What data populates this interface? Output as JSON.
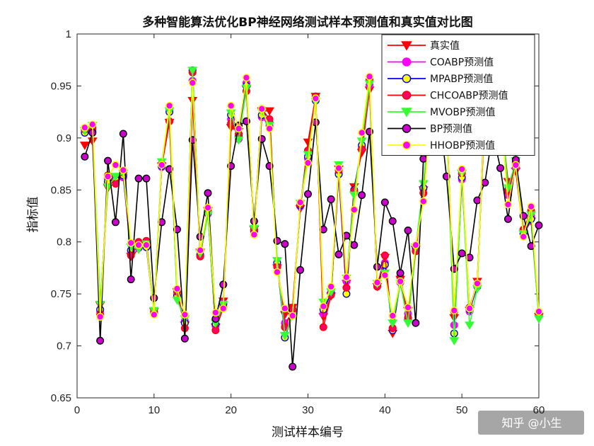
{
  "watermark": "知乎 @小生",
  "chart_data": {
    "type": "line",
    "title": "多种智能算法优化BP神经网络测试样本预测值和真实值对比图",
    "xlabel": "测试样本编号",
    "ylabel": "指标值",
    "xlim": [
      0,
      60
    ],
    "ylim": [
      0.65,
      1
    ],
    "xticks": [
      0,
      10,
      20,
      30,
      40,
      50,
      60
    ],
    "yticks": [
      0.65,
      0.7,
      0.75,
      0.8,
      0.85,
      0.9,
      0.95,
      1
    ],
    "ytick_labels": [
      "0.65",
      "0.7",
      "0.75",
      "0.8",
      "0.85",
      "0.9",
      "0.95",
      "1"
    ],
    "grid": false,
    "legend_position": "top-right",
    "x": [
      1,
      2,
      3,
      4,
      5,
      6,
      7,
      8,
      9,
      10,
      11,
      12,
      13,
      14,
      15,
      16,
      17,
      18,
      19,
      20,
      21,
      22,
      23,
      24,
      25,
      26,
      27,
      28,
      29,
      30,
      31,
      32,
      33,
      34,
      35,
      36,
      37,
      38,
      39,
      40,
      41,
      42,
      43,
      44,
      45,
      46,
      47,
      48,
      49,
      50,
      51,
      52,
      53,
      54,
      55,
      56,
      57,
      58,
      59,
      60
    ],
    "series": [
      {
        "name": "真实值",
        "color": "#ff0000",
        "marker": "triangle-down",
        "fill": "#ff0000",
        "values": [
          0.893,
          0.897,
          0.739,
          0.852,
          0.861,
          0.866,
          0.786,
          0.793,
          0.797,
          0.733,
          0.873,
          0.915,
          0.752,
          0.72,
          0.936,
          0.79,
          0.83,
          0.718,
          0.743,
          0.91,
          0.906,
          0.947,
          0.812,
          0.926,
          0.926,
          0.775,
          0.73,
          0.737,
          0.832,
          0.896,
          0.94,
          0.728,
          0.748,
          0.87,
          0.76,
          0.853,
          0.886,
          0.946,
          0.757,
          0.785,
          0.712,
          0.764,
          0.734,
          0.793,
          0.85,
          0.93,
          0.945,
          0.92,
          0.727,
          0.866,
          0.734,
          0.762,
          0.925,
          0.935,
          0.925,
          0.858,
          0.868,
          0.808,
          0.82,
          0.728
        ]
      },
      {
        "name": "COABP预测值",
        "color": "#ff00ff",
        "marker": "circle",
        "fill": "#ff00ff",
        "values": [
          0.906,
          0.908,
          0.733,
          0.861,
          0.858,
          0.862,
          0.791,
          0.794,
          0.796,
          0.732,
          0.872,
          0.928,
          0.749,
          0.724,
          0.955,
          0.788,
          0.827,
          0.719,
          0.741,
          0.918,
          0.899,
          0.953,
          0.81,
          0.92,
          0.912,
          0.777,
          0.722,
          0.732,
          0.834,
          0.88,
          0.938,
          0.731,
          0.752,
          0.866,
          0.762,
          0.848,
          0.891,
          0.951,
          0.76,
          0.78,
          0.717,
          0.761,
          0.731,
          0.793,
          0.851,
          0.935,
          0.955,
          0.92,
          0.72,
          0.86,
          0.733,
          0.758,
          0.935,
          0.94,
          0.935,
          0.845,
          0.872,
          0.81,
          0.825,
          0.73
        ]
      },
      {
        "name": "MPABP预测值",
        "color": "#0000ff",
        "marker": "circle",
        "fill": "#ffff00",
        "values": [
          0.905,
          0.906,
          0.735,
          0.858,
          0.86,
          0.864,
          0.792,
          0.795,
          0.795,
          0.731,
          0.873,
          0.925,
          0.748,
          0.722,
          0.965,
          0.787,
          0.828,
          0.721,
          0.74,
          0.922,
          0.902,
          0.95,
          0.811,
          0.922,
          0.915,
          0.78,
          0.708,
          0.73,
          0.835,
          0.882,
          0.936,
          0.735,
          0.75,
          0.865,
          0.75,
          0.85,
          0.893,
          0.955,
          0.758,
          0.778,
          0.715,
          0.762,
          0.725,
          0.795,
          0.852,
          0.93,
          0.95,
          0.925,
          0.712,
          0.862,
          0.735,
          0.757,
          0.94,
          0.945,
          0.93,
          0.85,
          0.875,
          0.808,
          0.822,
          0.732
        ]
      },
      {
        "name": "CHCOABP预测值",
        "color": "#ff0000",
        "marker": "circle",
        "fill": "#ff0066",
        "values": [
          0.908,
          0.91,
          0.73,
          0.864,
          0.856,
          0.867,
          0.787,
          0.8,
          0.801,
          0.733,
          0.875,
          0.916,
          0.752,
          0.717,
          0.963,
          0.786,
          0.83,
          0.715,
          0.737,
          0.914,
          0.904,
          0.945,
          0.812,
          0.928,
          0.918,
          0.776,
          0.718,
          0.735,
          0.836,
          0.888,
          0.94,
          0.718,
          0.749,
          0.869,
          0.756,
          0.849,
          0.889,
          0.956,
          0.757,
          0.787,
          0.717,
          0.766,
          0.727,
          0.791,
          0.847,
          0.931,
          0.952,
          0.922,
          0.733,
          0.866,
          0.737,
          0.76,
          0.93,
          0.938,
          0.928,
          0.849,
          0.877,
          0.812,
          0.83,
          0.729
        ]
      },
      {
        "name": "MVOBP预测值",
        "color": "#33ff33",
        "marker": "triangle-down",
        "fill": "#33ff33",
        "values": [
          0.907,
          0.912,
          0.74,
          0.853,
          0.863,
          0.866,
          0.795,
          0.793,
          0.798,
          0.734,
          0.877,
          0.926,
          0.744,
          0.726,
          0.965,
          0.789,
          0.826,
          0.722,
          0.74,
          0.924,
          0.898,
          0.948,
          0.813,
          0.925,
          0.912,
          0.782,
          0.71,
          0.729,
          0.837,
          0.884,
          0.935,
          0.742,
          0.752,
          0.874,
          0.765,
          0.845,
          0.897,
          0.952,
          0.76,
          0.77,
          0.722,
          0.76,
          0.722,
          0.795,
          0.856,
          0.935,
          0.958,
          0.918,
          0.705,
          0.866,
          0.72,
          0.755,
          0.938,
          0.942,
          0.932,
          0.852,
          0.878,
          0.808,
          0.826,
          0.726
        ]
      },
      {
        "name": "BP预测值",
        "color": "#000000",
        "marker": "circle",
        "fill": "#cc00cc",
        "values": [
          0.882,
          0.905,
          0.705,
          0.878,
          0.819,
          0.904,
          0.764,
          0.861,
          0.861,
          0.746,
          0.819,
          0.87,
          0.812,
          0.707,
          0.898,
          0.805,
          0.847,
          0.726,
          0.759,
          0.873,
          0.912,
          0.916,
          0.82,
          0.899,
          0.873,
          0.801,
          0.798,
          0.68,
          0.773,
          0.846,
          0.915,
          0.812,
          0.841,
          0.788,
          0.806,
          0.797,
          0.845,
          0.906,
          0.776,
          0.838,
          0.82,
          0.77,
          0.811,
          0.722,
          0.88,
          0.945,
          0.93,
          0.863,
          0.774,
          0.789,
          0.785,
          0.84,
          0.857,
          0.905,
          0.871,
          0.822,
          0.879,
          0.825,
          0.796,
          0.816
        ]
      },
      {
        "name": "HHOBP预测值",
        "color": "#ffff00",
        "marker": "circle",
        "fill": "#ff00ff",
        "values": [
          0.91,
          0.913,
          0.728,
          0.863,
          0.874,
          0.869,
          0.799,
          0.797,
          0.797,
          0.73,
          0.874,
          0.931,
          0.755,
          0.73,
          0.953,
          0.792,
          0.833,
          0.732,
          0.736,
          0.931,
          0.909,
          0.958,
          0.807,
          0.928,
          0.909,
          0.771,
          0.736,
          0.729,
          0.838,
          0.876,
          0.938,
          0.738,
          0.757,
          0.871,
          0.766,
          0.831,
          0.905,
          0.959,
          0.761,
          0.768,
          0.729,
          0.762,
          0.737,
          0.797,
          0.839,
          0.929,
          0.949,
          0.919,
          0.734,
          0.87,
          0.736,
          0.76,
          0.934,
          0.936,
          0.931,
          0.836,
          0.874,
          0.805,
          0.834,
          0.733
        ]
      }
    ]
  }
}
